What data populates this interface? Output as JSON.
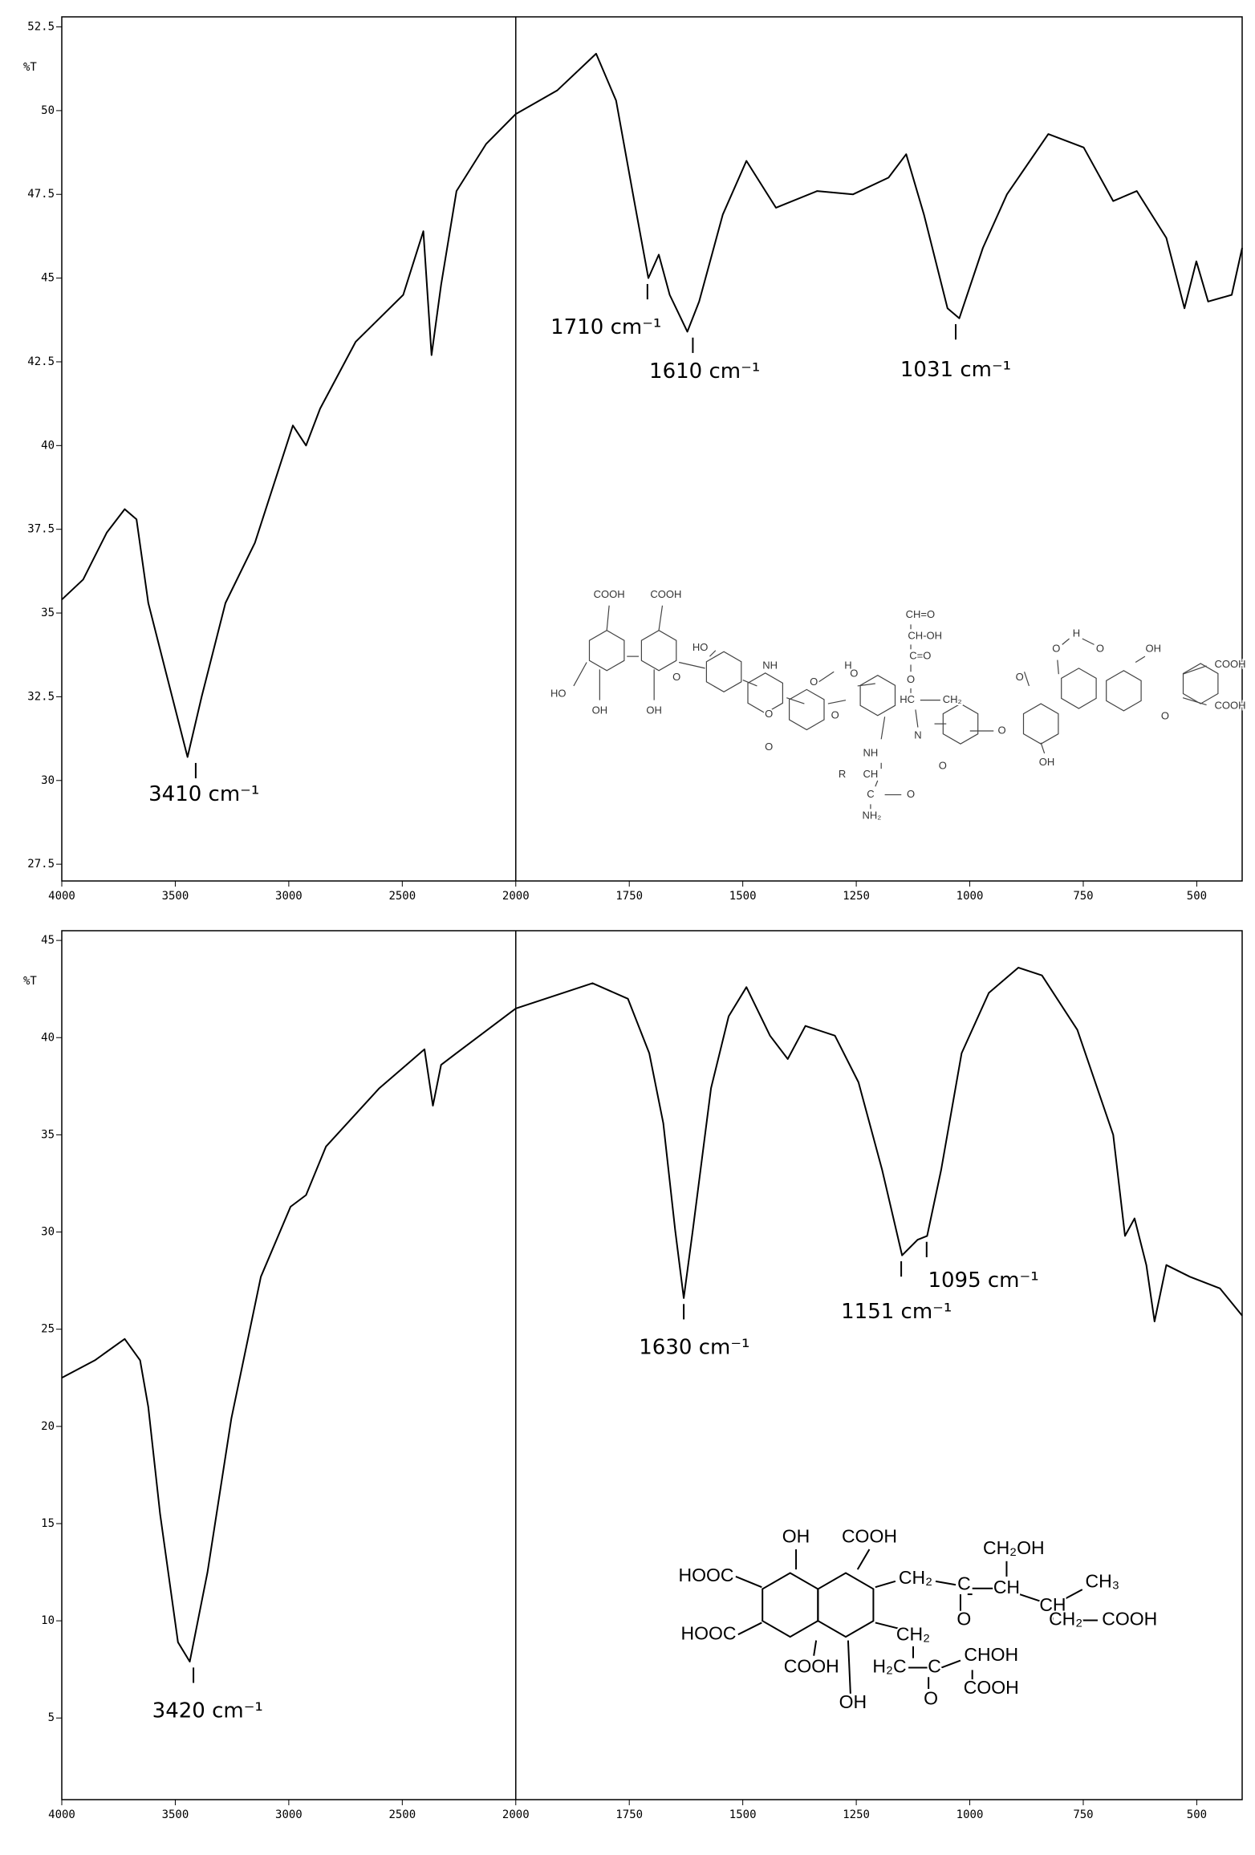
{
  "chart_data": [
    {
      "type": "line",
      "ylabel": "%T",
      "color": "#000000",
      "xlim": [
        4000,
        400
      ],
      "x_scale_break": 2000,
      "xticks": [
        4000,
        3500,
        3000,
        2500,
        2000,
        1750,
        1500,
        1250,
        1000,
        750,
        500
      ],
      "ylim": [
        27,
        52.8
      ],
      "yticks": [
        27.5,
        30,
        32.5,
        35,
        37.5,
        40,
        42.5,
        45,
        47.5,
        50,
        52.5
      ],
      "x": [
        4000,
        3906,
        3802,
        3723,
        3671,
        3619,
        3540,
        3446,
        3384,
        3279,
        3149,
        2982,
        2924,
        2862,
        2705,
        2496,
        2407,
        2371,
        2329,
        2261,
        2131,
        2000,
        1909,
        1823,
        1779,
        1739,
        1708,
        1685,
        1661,
        1622,
        1596,
        1544,
        1492,
        1427,
        1336,
        1257,
        1179,
        1140,
        1101,
        1049,
        1023,
        971,
        918,
        827,
        749,
        684,
        632,
        567,
        527,
        501,
        475,
        423,
        400
      ],
      "values": [
        35.4,
        36.0,
        37.4,
        38.1,
        37.8,
        35.3,
        33.2,
        30.7,
        32.5,
        35.3,
        37.1,
        40.6,
        40.0,
        41.1,
        43.1,
        44.5,
        46.4,
        42.7,
        44.8,
        47.6,
        49.0,
        49.9,
        50.6,
        51.7,
        50.3,
        47.3,
        45.0,
        45.7,
        44.5,
        43.4,
        44.3,
        46.9,
        48.5,
        47.1,
        47.6,
        47.5,
        48.0,
        48.7,
        46.9,
        44.1,
        43.8,
        45.9,
        47.5,
        49.3,
        48.9,
        47.3,
        47.6,
        46.2,
        44.1,
        45.5,
        44.3,
        44.5,
        45.9
      ],
      "annotations": [
        {
          "text": "3410 cm⁻¹",
          "x": 3410,
          "y": 30.7
        },
        {
          "text": "1710 cm⁻¹",
          "x": 1710,
          "y": 45.0
        },
        {
          "text": "1610 cm⁻¹",
          "x": 1610,
          "y": 43.4
        },
        {
          "text": "1031 cm⁻¹",
          "x": 1031,
          "y": 43.8
        }
      ],
      "structure_labels": [
        "COOH",
        "COOH",
        "HO",
        "OH",
        "OH",
        "HO",
        "NH",
        "O",
        "H",
        "O",
        "O",
        "O",
        "O",
        "O",
        "NH",
        "R",
        "CH",
        "C",
        "O",
        "NH₂",
        "CH=O",
        "CH-OH",
        "C=O",
        "O",
        "HC",
        "CH₂",
        "N",
        "O",
        "O",
        "OH",
        "O",
        "O",
        "H",
        "O",
        "OH",
        "COOH",
        "COOH",
        "O"
      ]
    },
    {
      "type": "line",
      "ylabel": "%T",
      "color": "#000000",
      "xlim": [
        4000,
        400
      ],
      "x_scale_break": 2000,
      "xticks": [
        4000,
        3500,
        3000,
        2500,
        2000,
        1750,
        1500,
        1250,
        1000,
        750,
        500
      ],
      "ylim": [
        0.8,
        45.5
      ],
      "yticks": [
        5,
        10,
        15,
        20,
        25,
        30,
        35,
        40,
        45
      ],
      "x": [
        4000,
        3854,
        3723,
        3655,
        3619,
        3567,
        3488,
        3436,
        3358,
        3253,
        3123,
        2992,
        2924,
        2836,
        2601,
        2402,
        2365,
        2329,
        2261,
        2000,
        1831,
        1753,
        1706,
        1675,
        1649,
        1630,
        1610,
        1570,
        1531,
        1492,
        1440,
        1401,
        1362,
        1297,
        1245,
        1193,
        1149,
        1115,
        1094,
        1063,
        1018,
        958,
        893,
        841,
        763,
        684,
        658,
        637,
        611,
        593,
        567,
        515,
        449,
        400
      ],
      "values": [
        22.5,
        23.4,
        24.5,
        23.4,
        21.0,
        15.5,
        8.9,
        7.9,
        12.5,
        20.4,
        27.7,
        31.3,
        31.9,
        34.4,
        37.4,
        39.4,
        36.5,
        38.6,
        39.2,
        41.5,
        42.8,
        42.0,
        39.2,
        35.6,
        30.1,
        26.6,
        30.1,
        37.4,
        41.1,
        42.6,
        40.1,
        38.9,
        40.6,
        40.1,
        37.7,
        33.2,
        28.8,
        29.6,
        29.8,
        33.2,
        39.2,
        42.3,
        43.6,
        43.2,
        40.4,
        35.0,
        29.8,
        30.7,
        28.3,
        25.4,
        28.3,
        27.7,
        27.1,
        25.7
      ],
      "annotations": [
        {
          "text": "3420 cm⁻¹",
          "x": 3420,
          "y": 7.9
        },
        {
          "text": "1630 cm⁻¹",
          "x": 1630,
          "y": 26.6
        },
        {
          "text": "1151 cm⁻¹",
          "x": 1151,
          "y": 28.8
        },
        {
          "text": "1095 cm⁻¹",
          "x": 1095,
          "y": 29.8
        }
      ],
      "structure_labels": [
        "OH",
        "COOH",
        "HOOC",
        "HOOC",
        "COOH",
        "OH",
        "CH₂",
        "C",
        "O",
        "CH",
        "CH₂OH",
        "CH",
        "CH₃",
        "CH₂",
        "COOH",
        "CH₂",
        "H₂C",
        "C",
        "O",
        "CHOH",
        "COOH"
      ]
    }
  ]
}
